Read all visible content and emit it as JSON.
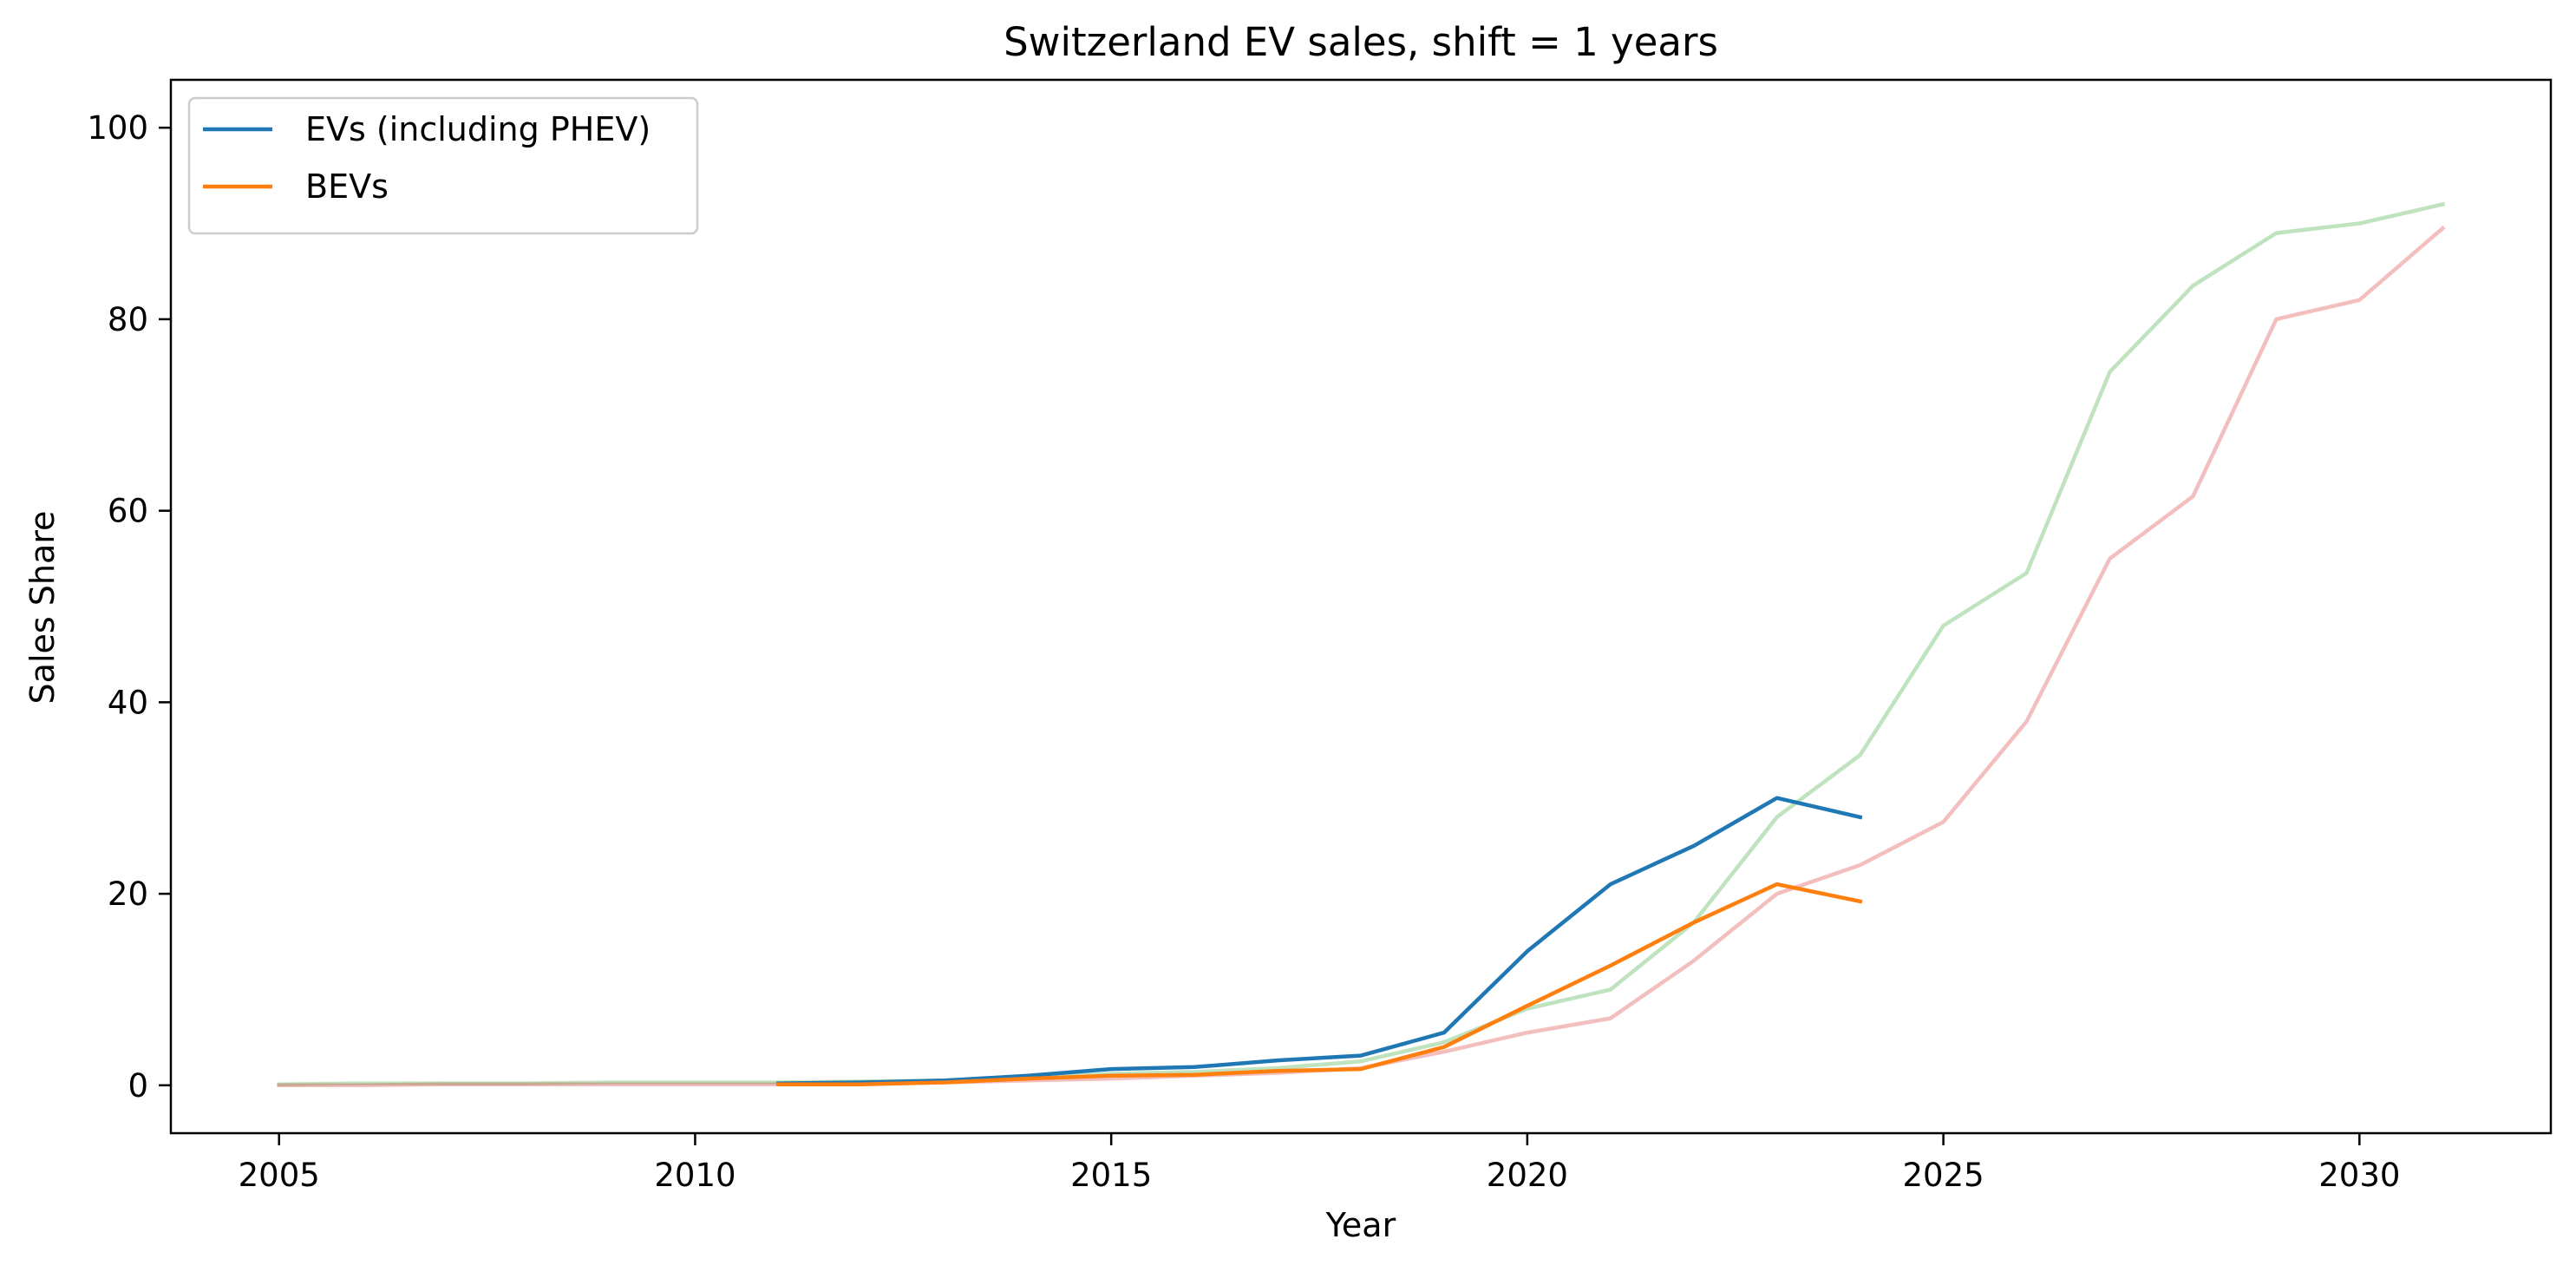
{
  "chart_data": {
    "type": "line",
    "title": "Switzerland EV sales, shift = 1 years",
    "xlabel": "Year",
    "ylabel": "Sales Share",
    "xlim": [
      2003.7,
      2032.3
    ],
    "ylim": [
      -5,
      105
    ],
    "x_ticks": [
      2005,
      2010,
      2015,
      2020,
      2025,
      2030
    ],
    "y_ticks": [
      0,
      20,
      40,
      60,
      80,
      100
    ],
    "grid": false,
    "legend_position": "top-left",
    "series": [
      {
        "name": "",
        "color": "#2ca02c",
        "opacity": 0.3,
        "x": [
          2005,
          2006,
          2007,
          2008,
          2009,
          2010,
          2011,
          2012,
          2013,
          2014,
          2015,
          2016,
          2017,
          2018,
          2019,
          2020,
          2021,
          2022,
          2023,
          2024,
          2025,
          2026,
          2027,
          2028,
          2029,
          2030,
          2031
        ],
        "y": [
          0.1,
          0.2,
          0.2,
          0.2,
          0.3,
          0.3,
          0.3,
          0.4,
          0.5,
          0.8,
          1.2,
          1.4,
          1.8,
          2.5,
          4.5,
          8.0,
          10.0,
          17.0,
          28.0,
          34.5,
          48.0,
          53.5,
          74.5,
          83.5,
          89.0,
          90.0,
          92.0
        ]
      },
      {
        "name": "",
        "color": "#d62728",
        "opacity": 0.3,
        "x": [
          2005,
          2006,
          2007,
          2008,
          2009,
          2010,
          2011,
          2012,
          2013,
          2014,
          2015,
          2016,
          2017,
          2018,
          2019,
          2020,
          2021,
          2022,
          2023,
          2024,
          2025,
          2026,
          2027,
          2028,
          2029,
          2030,
          2031
        ],
        "y": [
          0.0,
          0.0,
          0.1,
          0.1,
          0.1,
          0.1,
          0.1,
          0.2,
          0.3,
          0.5,
          0.7,
          1.0,
          1.3,
          1.8,
          3.5,
          5.5,
          7.0,
          13.0,
          20.0,
          23.0,
          27.5,
          38.0,
          55.0,
          61.5,
          80.0,
          82.0,
          89.5
        ]
      },
      {
        "name": "EVs (including PHEV)",
        "color": "#1f77b4",
        "opacity": 1,
        "x": [
          2011,
          2012,
          2013,
          2014,
          2015,
          2016,
          2017,
          2018,
          2019,
          2020,
          2021,
          2022,
          2023,
          2024
        ],
        "y": [
          0.2,
          0.3,
          0.5,
          1.0,
          1.7,
          1.9,
          2.6,
          3.1,
          5.5,
          14.0,
          21.0,
          25.0,
          30.0,
          28.0
        ]
      },
      {
        "name": "BEVs",
        "color": "#ff7f0e",
        "opacity": 1,
        "x": [
          2011,
          2012,
          2013,
          2014,
          2015,
          2016,
          2017,
          2018,
          2019,
          2020,
          2021,
          2022,
          2023,
          2024
        ],
        "y": [
          0.1,
          0.1,
          0.3,
          0.7,
          1.0,
          1.1,
          1.5,
          1.7,
          4.0,
          8.3,
          12.5,
          17.0,
          21.0,
          19.2
        ]
      }
    ]
  }
}
